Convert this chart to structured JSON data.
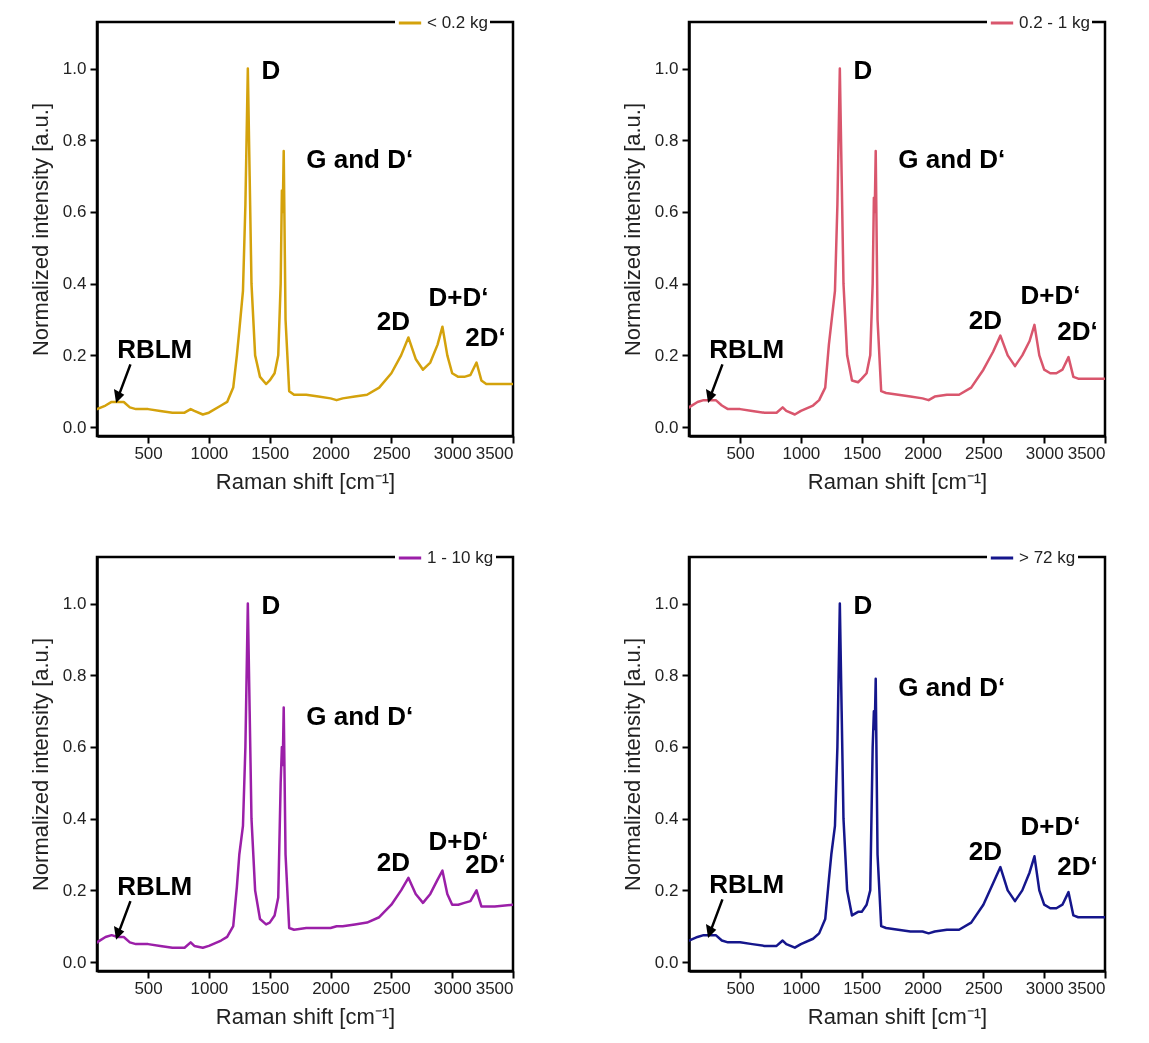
{
  "chart_data": [
    {
      "type": "line",
      "xlabel": "Raman shift [cm⁻¹]",
      "ylabel": "Normalized intensity [a.u.]",
      "legend": "top right",
      "xlim": [
        80,
        3500
      ],
      "ylim": [
        -0.025,
        1.13
      ],
      "xticks": [
        500,
        1000,
        1500,
        2000,
        2500,
        3000,
        3500
      ],
      "yticks": [
        {
          "value": 0,
          "label": "0.0"
        },
        {
          "value": 0.2,
          "label": "0.2"
        },
        {
          "value": 0.4,
          "label": "0.4"
        },
        {
          "value": 0.6,
          "label": "0.6"
        },
        {
          "value": 0.8,
          "label": "0.8"
        },
        {
          "value": 1,
          "label": "1.0"
        }
      ],
      "x": [
        80,
        150,
        200,
        250,
        300,
        350,
        400,
        500,
        600,
        700,
        800,
        850,
        880,
        950,
        1000,
        1100,
        1150,
        1200,
        1230,
        1250,
        1280,
        1300,
        1320,
        1335,
        1350,
        1380,
        1420,
        1470,
        1500,
        1540,
        1570,
        1590,
        1600,
        1607,
        1615,
        1630,
        1660,
        1700,
        1800,
        1900,
        2000,
        2050,
        2100,
        2200,
        2300,
        2400,
        2500,
        2580,
        2640,
        2700,
        2760,
        2820,
        2880,
        2920,
        2960,
        3000,
        3050,
        3100,
        3150,
        3200,
        3240,
        3280,
        3350,
        3500
      ],
      "series": [
        {
          "name": "< 0.2 kg",
          "color": "#d4a20c",
          "values": [
            0.05,
            0.06,
            0.07,
            0.07,
            0.07,
            0.055,
            0.05,
            0.05,
            0.045,
            0.04,
            0.04,
            0.05,
            0.045,
            0.035,
            0.04,
            0.06,
            0.07,
            0.11,
            0.2,
            0.27,
            0.38,
            0.62,
            1.0,
            0.7,
            0.4,
            0.2,
            0.14,
            0.12,
            0.13,
            0.15,
            0.2,
            0.4,
            0.66,
            0.6,
            0.77,
            0.3,
            0.1,
            0.09,
            0.09,
            0.085,
            0.08,
            0.075,
            0.08,
            0.085,
            0.09,
            0.11,
            0.15,
            0.2,
            0.25,
            0.19,
            0.16,
            0.18,
            0.23,
            0.28,
            0.2,
            0.15,
            0.14,
            0.14,
            0.145,
            0.18,
            0.13,
            0.12,
            0.12,
            0.12
          ]
        }
      ],
      "annotations": [
        {
          "text": "D",
          "x": 1320,
          "y": 1.0
        },
        {
          "text": "G and D‘",
          "x": 1615,
          "y": 0.77
        },
        {
          "text": "2D",
          "x": 2640,
          "y": 0.25
        },
        {
          "text": "D+D‘",
          "x": 2920,
          "y": 0.28
        },
        {
          "text": "2D‘",
          "x": 3200,
          "y": 0.18
        },
        {
          "text": "RBLM",
          "x": 250,
          "y": 0.08
        }
      ]
    },
    {
      "type": "line",
      "xlabel": "Raman shift [cm⁻¹]",
      "ylabel": "Normalized intensity [a.u.]",
      "legend": "top right",
      "xlim": [
        80,
        3500
      ],
      "ylim": [
        -0.025,
        1.13
      ],
      "xticks": [
        500,
        1000,
        1500,
        2000,
        2500,
        3000,
        3500
      ],
      "yticks": [
        {
          "value": 0,
          "label": "0.0"
        },
        {
          "value": 0.2,
          "label": "0.2"
        },
        {
          "value": 0.4,
          "label": "0.4"
        },
        {
          "value": 0.6,
          "label": "0.6"
        },
        {
          "value": 0.8,
          "label": "0.8"
        },
        {
          "value": 1,
          "label": "1.0"
        }
      ],
      "x": [
        80,
        150,
        200,
        250,
        300,
        350,
        400,
        500,
        600,
        700,
        800,
        850,
        880,
        950,
        1000,
        1100,
        1150,
        1200,
        1230,
        1250,
        1280,
        1300,
        1320,
        1335,
        1350,
        1380,
        1420,
        1470,
        1500,
        1540,
        1570,
        1590,
        1600,
        1607,
        1615,
        1630,
        1660,
        1700,
        1800,
        1900,
        2000,
        2050,
        2100,
        2200,
        2300,
        2400,
        2500,
        2580,
        2640,
        2700,
        2760,
        2820,
        2880,
        2920,
        2960,
        3000,
        3050,
        3100,
        3150,
        3200,
        3240,
        3280,
        3350,
        3500
      ],
      "series": [
        {
          "name": "0.2 - 1 kg",
          "color": "#d9566d",
          "values": [
            0.055,
            0.07,
            0.075,
            0.075,
            0.075,
            0.06,
            0.05,
            0.05,
            0.045,
            0.04,
            0.04,
            0.055,
            0.045,
            0.035,
            0.045,
            0.06,
            0.075,
            0.11,
            0.23,
            0.29,
            0.38,
            0.62,
            1.0,
            0.7,
            0.4,
            0.2,
            0.13,
            0.125,
            0.135,
            0.15,
            0.2,
            0.4,
            0.64,
            0.6,
            0.77,
            0.3,
            0.1,
            0.095,
            0.09,
            0.085,
            0.08,
            0.075,
            0.085,
            0.09,
            0.09,
            0.11,
            0.16,
            0.21,
            0.255,
            0.2,
            0.17,
            0.2,
            0.24,
            0.285,
            0.2,
            0.16,
            0.15,
            0.15,
            0.16,
            0.195,
            0.14,
            0.135,
            0.135,
            0.135
          ]
        }
      ],
      "annotations": [
        {
          "text": "D",
          "x": 1320,
          "y": 1.0
        },
        {
          "text": "G and D‘",
          "x": 1615,
          "y": 0.77
        },
        {
          "text": "2D",
          "x": 2640,
          "y": 0.255
        },
        {
          "text": "D+D‘",
          "x": 2920,
          "y": 0.285
        },
        {
          "text": "2D‘",
          "x": 3200,
          "y": 0.195
        },
        {
          "text": "RBLM",
          "x": 250,
          "y": 0.08
        }
      ]
    },
    {
      "type": "line",
      "xlabel": "Raman shift [cm⁻¹]",
      "ylabel": "Normalized intensity [a.u.]",
      "legend": "top right",
      "xlim": [
        80,
        3500
      ],
      "ylim": [
        -0.025,
        1.13
      ],
      "xticks": [
        500,
        1000,
        1500,
        2000,
        2500,
        3000,
        3500
      ],
      "yticks": [
        {
          "value": 0,
          "label": "0.0"
        },
        {
          "value": 0.2,
          "label": "0.2"
        },
        {
          "value": 0.4,
          "label": "0.4"
        },
        {
          "value": 0.6,
          "label": "0.6"
        },
        {
          "value": 0.8,
          "label": "0.8"
        },
        {
          "value": 1,
          "label": "1.0"
        }
      ],
      "x": [
        80,
        150,
        200,
        250,
        300,
        350,
        400,
        500,
        600,
        700,
        800,
        850,
        880,
        950,
        1000,
        1100,
        1150,
        1200,
        1230,
        1250,
        1280,
        1300,
        1320,
        1335,
        1350,
        1380,
        1420,
        1470,
        1500,
        1540,
        1570,
        1590,
        1600,
        1607,
        1615,
        1630,
        1660,
        1700,
        1800,
        1900,
        2000,
        2050,
        2100,
        2200,
        2300,
        2400,
        2500,
        2580,
        2640,
        2700,
        2760,
        2820,
        2880,
        2920,
        2960,
        3000,
        3050,
        3100,
        3150,
        3200,
        3240,
        3280,
        3350,
        3500
      ],
      "series": [
        {
          "name": "1 - 10 kg",
          "color": "#9b1fa8",
          "values": [
            0.055,
            0.07,
            0.075,
            0.07,
            0.07,
            0.055,
            0.05,
            0.05,
            0.045,
            0.04,
            0.04,
            0.055,
            0.045,
            0.04,
            0.045,
            0.06,
            0.07,
            0.1,
            0.21,
            0.3,
            0.38,
            0.6,
            1.0,
            0.7,
            0.4,
            0.2,
            0.12,
            0.105,
            0.11,
            0.13,
            0.18,
            0.5,
            0.6,
            0.55,
            0.71,
            0.3,
            0.095,
            0.09,
            0.095,
            0.095,
            0.095,
            0.1,
            0.1,
            0.105,
            0.11,
            0.125,
            0.16,
            0.2,
            0.235,
            0.19,
            0.165,
            0.19,
            0.23,
            0.255,
            0.19,
            0.16,
            0.16,
            0.165,
            0.17,
            0.2,
            0.155,
            0.155,
            0.155,
            0.16
          ]
        }
      ],
      "annotations": [
        {
          "text": "D",
          "x": 1320,
          "y": 1.0
        },
        {
          "text": "G and D‘",
          "x": 1615,
          "y": 0.71
        },
        {
          "text": "2D",
          "x": 2640,
          "y": 0.235
        },
        {
          "text": "D+D‘",
          "x": 2920,
          "y": 0.255
        },
        {
          "text": "2D‘",
          "x": 3200,
          "y": 0.2
        },
        {
          "text": "RBLM",
          "x": 250,
          "y": 0.075
        }
      ]
    },
    {
      "type": "line",
      "xlabel": "Raman shift [cm⁻¹]",
      "ylabel": "Normalized intensity [a.u.]",
      "legend": "top right",
      "xlim": [
        80,
        3500
      ],
      "ylim": [
        -0.025,
        1.13
      ],
      "xticks": [
        500,
        1000,
        1500,
        2000,
        2500,
        3000,
        3500
      ],
      "yticks": [
        {
          "value": 0,
          "label": "0.0"
        },
        {
          "value": 0.2,
          "label": "0.2"
        },
        {
          "value": 0.4,
          "label": "0.4"
        },
        {
          "value": 0.6,
          "label": "0.6"
        },
        {
          "value": 0.8,
          "label": "0.8"
        },
        {
          "value": 1,
          "label": "1.0"
        }
      ],
      "x": [
        80,
        150,
        200,
        250,
        300,
        350,
        400,
        500,
        600,
        700,
        800,
        850,
        880,
        950,
        1000,
        1100,
        1150,
        1200,
        1230,
        1250,
        1280,
        1300,
        1320,
        1335,
        1350,
        1380,
        1420,
        1470,
        1500,
        1540,
        1570,
        1590,
        1600,
        1607,
        1615,
        1630,
        1660,
        1700,
        1800,
        1900,
        2000,
        2050,
        2100,
        2200,
        2300,
        2400,
        2500,
        2580,
        2640,
        2700,
        2760,
        2820,
        2880,
        2920,
        2960,
        3000,
        3050,
        3100,
        3150,
        3200,
        3240,
        3280,
        3350,
        3500
      ],
      "series": [
        {
          "name": "> 72 kg",
          "color": "#15168c",
          "values": [
            0.06,
            0.07,
            0.075,
            0.075,
            0.075,
            0.06,
            0.055,
            0.055,
            0.05,
            0.045,
            0.045,
            0.06,
            0.05,
            0.04,
            0.05,
            0.065,
            0.08,
            0.12,
            0.23,
            0.3,
            0.38,
            0.6,
            1.0,
            0.7,
            0.4,
            0.2,
            0.13,
            0.14,
            0.14,
            0.16,
            0.2,
            0.6,
            0.7,
            0.65,
            0.79,
            0.3,
            0.1,
            0.095,
            0.09,
            0.085,
            0.085,
            0.08,
            0.085,
            0.09,
            0.09,
            0.11,
            0.16,
            0.22,
            0.265,
            0.2,
            0.17,
            0.2,
            0.25,
            0.295,
            0.2,
            0.16,
            0.15,
            0.15,
            0.16,
            0.195,
            0.13,
            0.125,
            0.125,
            0.125
          ]
        }
      ],
      "annotations": [
        {
          "text": "D",
          "x": 1320,
          "y": 1.0
        },
        {
          "text": "G and D‘",
          "x": 1615,
          "y": 0.79
        },
        {
          "text": "2D",
          "x": 2640,
          "y": 0.265
        },
        {
          "text": "D+D‘",
          "x": 2920,
          "y": 0.295
        },
        {
          "text": "2D‘",
          "x": 3200,
          "y": 0.195
        },
        {
          "text": "RBLM",
          "x": 250,
          "y": 0.08
        }
      ]
    }
  ]
}
